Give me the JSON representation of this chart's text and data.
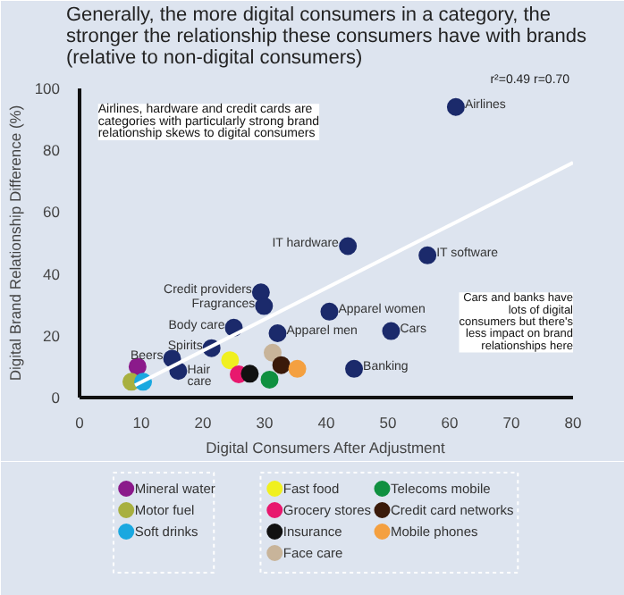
{
  "chart_data": {
    "type": "scatter",
    "title": "Generally, the more digital consumers in a category, the stronger the relationship these consumers have with brands (relative to non-digital consumers)",
    "xlabel": "Digital Consumers After Adjustment",
    "ylabel": "Digital Brand Relationship Difference (%)",
    "xlim": [
      0,
      80
    ],
    "ylim": [
      0,
      100
    ],
    "xticks": [
      0,
      10,
      20,
      30,
      40,
      50,
      60,
      70,
      80
    ],
    "yticks": [
      0,
      20,
      40,
      60,
      80,
      100
    ],
    "grid": false,
    "legend": "bottom",
    "marker": "circle",
    "series": [
      {
        "color": "#1b2a6b",
        "x": [
          61,
          43.5,
          56.4,
          29.4,
          29.9,
          25,
          21.4,
          15,
          40.5,
          32.1,
          50.5,
          44.5,
          16
        ],
        "values": [
          94,
          49,
          46,
          34,
          29.6,
          22.6,
          16,
          12.6,
          27.8,
          20.8,
          21.5,
          9.3,
          8.6
        ]
      },
      {
        "name": "Mineral water",
        "color": "#8b1a8b",
        "x": [
          9.4
        ],
        "values": [
          10
        ]
      },
      {
        "name": "Motor fuel",
        "color": "#a8b040",
        "x": [
          8.4
        ],
        "values": [
          5.1
        ]
      },
      {
        "name": "Soft drinks",
        "color": "#1aa8e0",
        "x": [
          10.3
        ],
        "values": [
          5.1
        ]
      },
      {
        "name": "Fast food",
        "color": "#f0f020",
        "x": [
          24.4
        ],
        "values": [
          12.1
        ]
      },
      {
        "name": "Grocery stores",
        "color": "#e8186e",
        "x": [
          25.8
        ],
        "values": [
          7.5
        ]
      },
      {
        "name": "Insurance",
        "color": "#111111",
        "x": [
          27.6
        ],
        "values": [
          7.7
        ]
      },
      {
        "name": "Face care",
        "color": "#c8b49a",
        "x": [
          31.3
        ],
        "values": [
          14.5
        ]
      },
      {
        "name": "Telecoms mobile",
        "color": "#109040",
        "x": [
          30.8
        ],
        "values": [
          5.8
        ]
      },
      {
        "name": "Credit card networks",
        "color": "#3a1a0a",
        "x": [
          32.7
        ],
        "values": [
          10.5
        ]
      },
      {
        "name": "Mobile phones",
        "color": "#f4a040",
        "x": [
          35.3
        ],
        "values": [
          9.3
        ]
      },
      {
        "type": "line",
        "marker": "none",
        "color": "#ffffff",
        "x": [
          9,
          80
        ],
        "values": [
          4,
          76
        ]
      }
    ],
    "annotations": [
      "r²=0.49  r=0.70",
      "Airlines, hardware and credit cards are categories with particularly strong brand relationship skews to digital consumers",
      "Cars and banks have lots of digital consumers but there's less impact on brand relationships here",
      {
        "text": "Airlines",
        "x": 61,
        "y": 94
      },
      {
        "text": "IT hardware",
        "x": 43.5,
        "y": 49
      },
      {
        "text": "IT software",
        "x": 56.4,
        "y": 46
      },
      {
        "text": "Credit providers",
        "x": 29.4,
        "y": 34
      },
      {
        "text": "Fragrances",
        "x": 29.9,
        "y": 29.6
      },
      {
        "text": "Body care",
        "x": 25,
        "y": 22.6
      },
      {
        "text": "Spirits",
        "x": 21.4,
        "y": 16
      },
      {
        "text": "Beers",
        "x": 15,
        "y": 12.6
      },
      {
        "text": "Apparel women",
        "x": 40.5,
        "y": 27.8
      },
      {
        "text": "Apparel men",
        "x": 32.1,
        "y": 20.8
      },
      {
        "text": "Cars",
        "x": 50.5,
        "y": 21.5
      },
      {
        "text": "Banking",
        "x": 44.5,
        "y": 9.3
      },
      {
        "text": "Hair care",
        "x": 16,
        "y": 8.6
      }
    ]
  }
}
